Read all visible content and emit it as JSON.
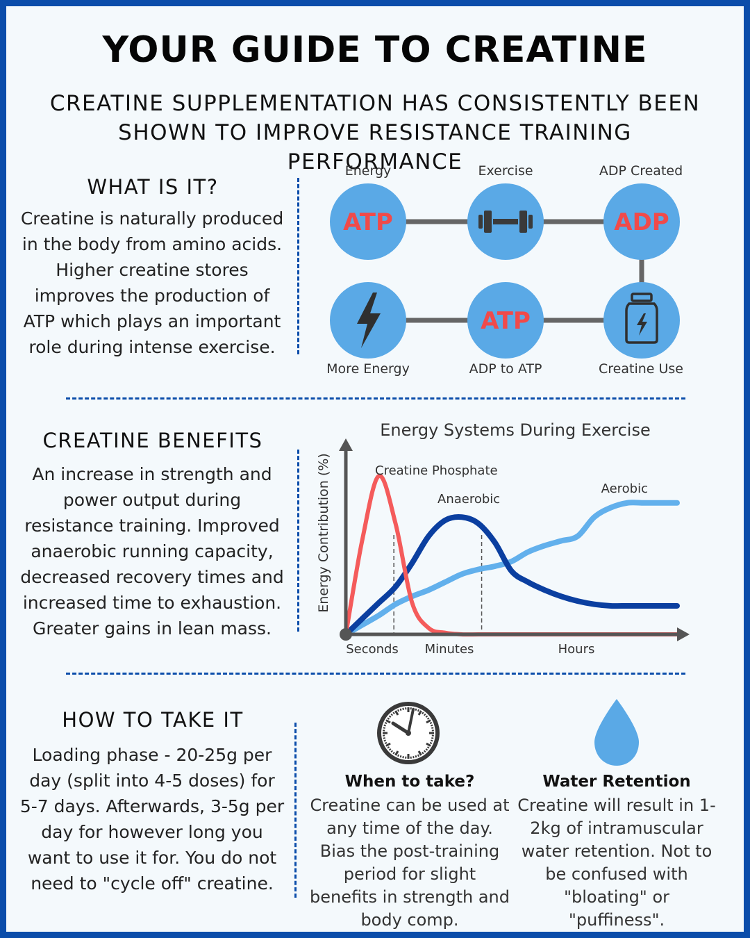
{
  "title": "YOUR GUIDE TO CREATINE",
  "subtitle": "CREATINE SUPPLEMENTATION HAS CONSISTENTLY BEEN SHOWN TO IMPROVE RESISTANCE TRAINING PERFORMANCE",
  "colors": {
    "border": "#0B4DAA",
    "node_fill": "#5AA9E6",
    "node_text": "#F04A4A",
    "connector": "#666666",
    "creatine_phosphate": "#F45B5B",
    "anaerobic": "#0B3FA0",
    "aerobic": "#62B0EC"
  },
  "what_is_it": {
    "heading": "WHAT IS IT?",
    "body": "Creatine is naturally produced in the body from amino acids. Higher creatine stores improves the production of ATP which plays an important role during intense exercise."
  },
  "cycle": {
    "nodes": [
      {
        "label": "Energy",
        "text": "ATP",
        "icon": ""
      },
      {
        "label": "Exercise",
        "text": "",
        "icon": "dumbbell-icon"
      },
      {
        "label": "ADP Created",
        "text": "ADP",
        "icon": ""
      },
      {
        "label": "More Energy",
        "text": "",
        "icon": "lightning-bolt-icon"
      },
      {
        "label": "ADP to ATP",
        "text": "ATP",
        "icon": ""
      },
      {
        "label": "Creatine Use",
        "text": "",
        "icon": "supplement-jar-icon"
      }
    ]
  },
  "benefits": {
    "heading": "CREATINE BENEFITS",
    "body": "An increase in strength and power output during resistance training. Improved anaerobic running capacity, decreased recovery times and increased time to exhaustion. Greater gains in lean mass."
  },
  "chart_data": {
    "type": "line",
    "title": "Energy Systems During Exercise",
    "ylabel": "Energy Contribution (%)",
    "xlabel": "",
    "x_ticks": [
      "Seconds",
      "Minutes",
      "Hours"
    ],
    "x_axis_scale": "qualitative time (seconds to hours)",
    "ylim": [
      0,
      100
    ],
    "grid": false,
    "phase_dividers": [
      "Seconds|Minutes",
      "Minutes|Hours"
    ],
    "legend": "direct labels on curves",
    "x_positions": [
      0,
      0.05,
      0.1,
      0.15,
      0.2,
      0.25,
      0.3,
      0.35,
      0.4,
      0.45,
      0.5,
      0.55,
      0.6,
      0.65,
      0.7,
      0.75,
      0.8,
      0.85,
      0.9,
      0.95,
      1.0
    ],
    "series": [
      {
        "name": "Creatine Phosphate",
        "values": [
          0,
          60,
          100,
          70,
          20,
          4,
          1,
          0,
          0,
          0,
          0,
          0,
          0,
          0,
          0,
          0,
          0,
          0,
          0,
          0,
          0
        ]
      },
      {
        "name": "Anaerobic",
        "values": [
          0,
          10,
          20,
          30,
          45,
          62,
          72,
          74,
          70,
          58,
          40,
          33,
          28,
          24,
          21,
          19,
          18,
          18,
          18,
          18,
          18
        ]
      },
      {
        "name": "Aerobic",
        "values": [
          0,
          6,
          12,
          19,
          24,
          28,
          33,
          38,
          41,
          43,
          46,
          52,
          56,
          59,
          62,
          74,
          80,
          83,
          83,
          83,
          83
        ]
      }
    ]
  },
  "how_to_take": {
    "heading": "HOW TO TAKE IT",
    "body": "Loading phase - 20-25g per day (split into 4-5 doses) for 5-7 days. Afterwards, 3-5g per day for however long you want to use it for. You do not need to \"cycle off\" creatine."
  },
  "when_to_take": {
    "icon": "clock-icon",
    "heading": "When to take?",
    "body": "Creatine can be used at any time of the day. Bias the post-training period for slight benefits in strength and body comp."
  },
  "water_retention": {
    "icon": "water-drop-icon",
    "heading": "Water Retention",
    "body": "Creatine will result in 1-2kg of intramuscular water retention. Not to be confused with \"bloating\" or \"puffiness\"."
  }
}
